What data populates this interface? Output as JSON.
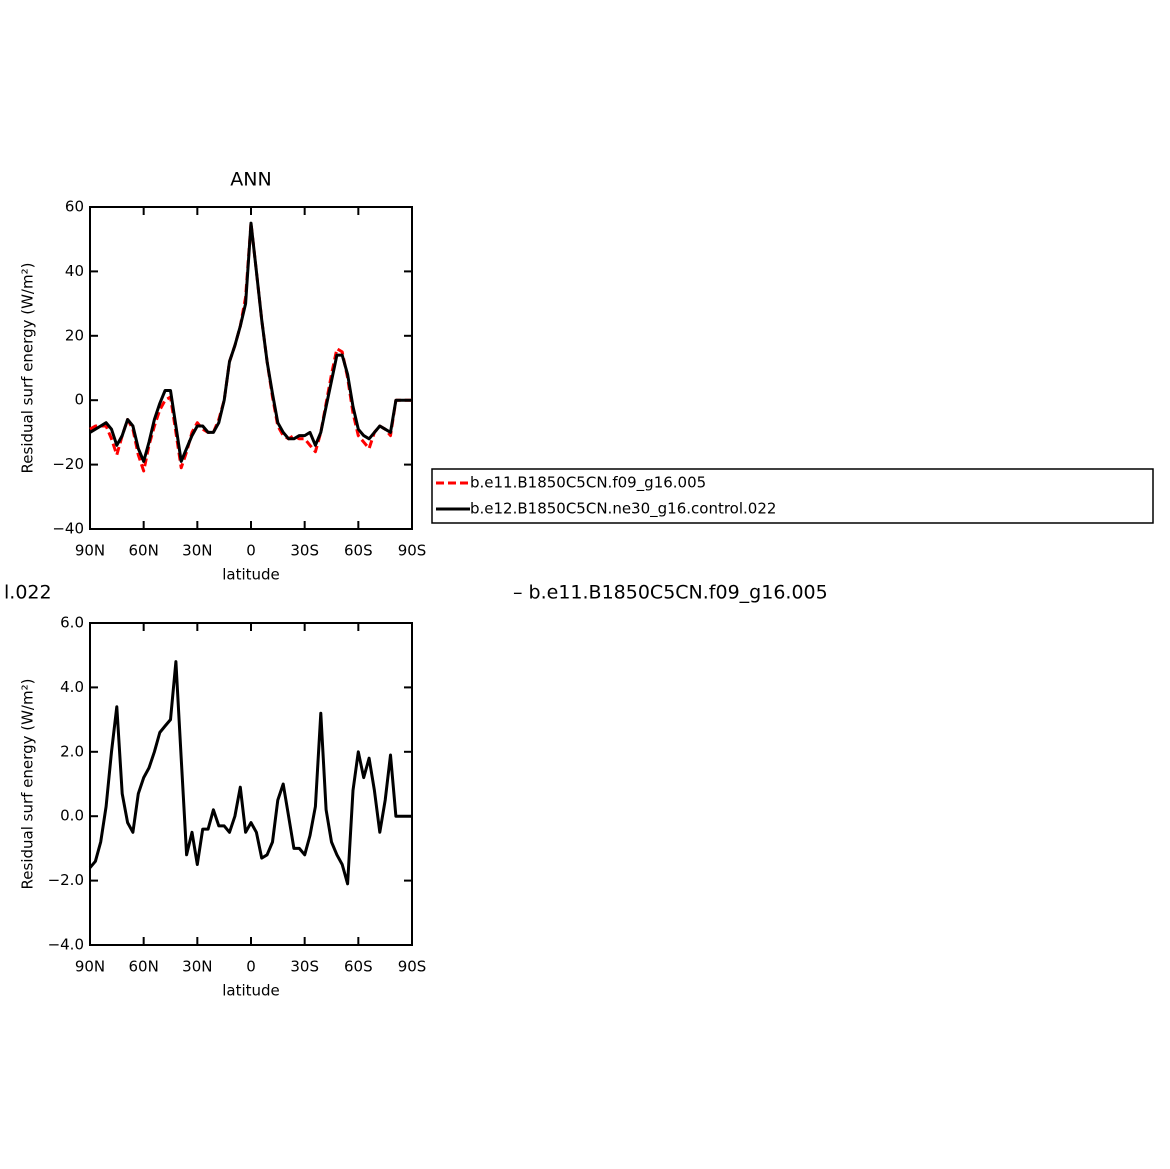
{
  "chart_data": [
    {
      "type": "line",
      "title": "ANN",
      "xlabel": "latitude",
      "ylabel": "Residual surf energy (W/m²)",
      "x": [
        90,
        87,
        84,
        81,
        78,
        75,
        72,
        69,
        66,
        63,
        60,
        57,
        54,
        51,
        48,
        45,
        42,
        39,
        36,
        33,
        30,
        27,
        24,
        21,
        18,
        15,
        12,
        9,
        6,
        3,
        0,
        -3,
        -6,
        -9,
        -12,
        -15,
        -18,
        -21,
        -24,
        -27,
        -30,
        -33,
        -36,
        -39,
        -42,
        -45,
        -48,
        -51,
        -54,
        -57,
        -60,
        -63,
        -66,
        -69,
        -72,
        -75,
        -78,
        -81,
        -84,
        -87,
        -90
      ],
      "xlim": [
        90,
        -90
      ],
      "xticks": [
        {
          "value": 90,
          "label": "90N"
        },
        {
          "value": 60,
          "label": "60N"
        },
        {
          "value": 30,
          "label": "30N"
        },
        0,
        {
          "value": -30,
          "label": "30S"
        },
        {
          "value": -60,
          "label": "60S"
        },
        {
          "value": -90,
          "label": "90S"
        }
      ],
      "ylim": [
        -40,
        60
      ],
      "yticks": [
        {
          "value": -40,
          "label": "−40"
        },
        {
          "value": -20,
          "label": "−20"
        },
        0,
        20,
        40,
        60
      ],
      "legend": "right",
      "series": [
        {
          "name": "b.e11.B1850C5CN.f09_g16.005",
          "color": "#ff0000",
          "dashed": true,
          "values": [
            -9,
            -8,
            -8,
            -8,
            -12,
            -17,
            -11,
            -6,
            -9,
            -17,
            -22,
            -14,
            -8,
            -3,
            0,
            1,
            -10,
            -21,
            -16,
            -10,
            -7,
            -9,
            -10,
            -10,
            -6,
            0,
            12,
            17,
            23,
            32,
            55,
            40,
            25,
            12,
            1,
            -8,
            -11,
            -12,
            -11,
            -12,
            -12,
            -14,
            -16,
            -10,
            -1,
            8,
            16,
            15,
            7,
            -4,
            -11,
            -13,
            -15,
            -10,
            -8,
            -9,
            -11,
            0,
            0,
            0,
            0
          ]
        },
        {
          "name": "b.e12.B1850C5CN.ne30_g16.control.022",
          "color": "#000000",
          "dashed": false,
          "values": [
            -10,
            -9,
            -8,
            -7,
            -9,
            -14,
            -11,
            -6,
            -8,
            -15,
            -19,
            -13,
            -6,
            -1,
            3,
            3,
            -8,
            -19,
            -15,
            -11,
            -8,
            -8,
            -10,
            -10,
            -7,
            0,
            12,
            17,
            23,
            30,
            55,
            40,
            25,
            12,
            2,
            -7,
            -10,
            -12,
            -12,
            -11,
            -11,
            -10,
            -14,
            -10,
            -2,
            6,
            14,
            14,
            8,
            -2,
            -9,
            -11,
            -12,
            -10,
            -8,
            -9,
            -10,
            0,
            0,
            0,
            0
          ]
        }
      ]
    },
    {
      "type": "line",
      "xlabel": "latitude",
      "ylabel": "Residual surf energy (W/m²)",
      "annotations": [
        "l.022",
        "– b.e11.B1850C5CN.f09_g16.005"
      ],
      "x": [
        90,
        87,
        84,
        81,
        78,
        75,
        72,
        69,
        66,
        63,
        60,
        57,
        54,
        51,
        48,
        45,
        42,
        39,
        36,
        33,
        30,
        27,
        24,
        21,
        18,
        15,
        12,
        9,
        6,
        3,
        0,
        -3,
        -6,
        -9,
        -12,
        -15,
        -18,
        -21,
        -24,
        -27,
        -30,
        -33,
        -36,
        -39,
        -42,
        -45,
        -48,
        -51,
        -54,
        -57,
        -60,
        -63,
        -66,
        -69,
        -72,
        -75,
        -78,
        -81,
        -84,
        -87,
        -90
      ],
      "xlim": [
        90,
        -90
      ],
      "xticks": [
        {
          "value": 90,
          "label": "90N"
        },
        {
          "value": 60,
          "label": "60N"
        },
        {
          "value": 30,
          "label": "30N"
        },
        0,
        {
          "value": -30,
          "label": "30S"
        },
        {
          "value": -60,
          "label": "60S"
        },
        {
          "value": -90,
          "label": "90S"
        }
      ],
      "ylim": [
        -4,
        6
      ],
      "yticks": [
        {
          "value": -4,
          "label": "−4.0"
        },
        {
          "value": -2,
          "label": "−2.0"
        },
        {
          "value": 0,
          "label": "0.0"
        },
        {
          "value": 2,
          "label": "2.0"
        },
        {
          "value": 4,
          "label": "4.0"
        },
        {
          "value": 6,
          "label": "6.0"
        }
      ],
      "series": [
        {
          "color": "#000000",
          "dashed": false,
          "values": [
            -1.6,
            -1.4,
            -0.8,
            0.3,
            2.0,
            3.4,
            0.7,
            -0.2,
            -0.5,
            0.7,
            1.2,
            1.5,
            2.0,
            2.6,
            2.8,
            3.0,
            4.8,
            1.8,
            -1.2,
            -0.5,
            -1.5,
            -0.4,
            -0.4,
            0.2,
            -0.3,
            -0.3,
            -0.5,
            0,
            0.9,
            -0.5,
            -0.2,
            -0.5,
            -1.3,
            -1.2,
            -0.8,
            0.5,
            1.0,
            0,
            -1.0,
            -1.0,
            -1.2,
            -0.6,
            0.3,
            3.2,
            0.2,
            -0.8,
            -1.2,
            -1.5,
            -2.1,
            0.8,
            2.0,
            1.2,
            1.8,
            0.8,
            -0.5,
            0.5,
            1.9,
            0,
            0,
            0,
            0
          ]
        }
      ]
    }
  ]
}
